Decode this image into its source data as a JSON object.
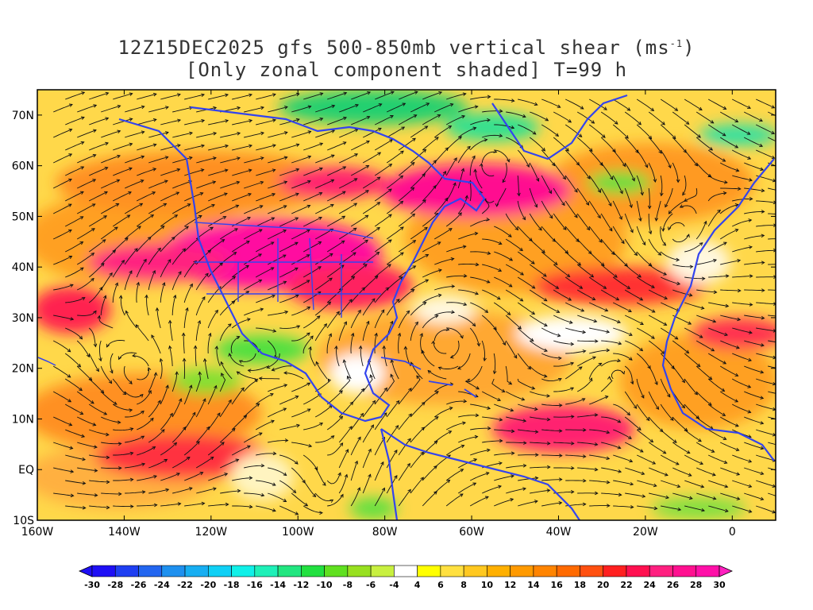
{
  "title": {
    "line1_prefix": "12Z15DEC2025 gfs 500-850mb vertical shear (ms",
    "line1_sup": "-1",
    "line1_suffix": ")",
    "line2": "[Only zonal component shaded] T=99 h"
  },
  "map": {
    "lon_range": [
      -160,
      10
    ],
    "lat_range": [
      -10,
      75
    ],
    "lon_ticks": [
      {
        "value": -160,
        "label": "160W"
      },
      {
        "value": -140,
        "label": "140W"
      },
      {
        "value": -120,
        "label": "120W"
      },
      {
        "value": -100,
        "label": "100W"
      },
      {
        "value": -80,
        "label": "80W"
      },
      {
        "value": -60,
        "label": "60W"
      },
      {
        "value": -40,
        "label": "40W"
      },
      {
        "value": -20,
        "label": "20W"
      },
      {
        "value": 0,
        "label": "0"
      }
    ],
    "lat_ticks": [
      {
        "value": 70,
        "label": "70N"
      },
      {
        "value": 60,
        "label": "60N"
      },
      {
        "value": 50,
        "label": "50N"
      },
      {
        "value": 40,
        "label": "40N"
      },
      {
        "value": 30,
        "label": "30N"
      },
      {
        "value": 20,
        "label": "20N"
      },
      {
        "value": 10,
        "label": "10N"
      },
      {
        "value": 0,
        "label": "EQ"
      },
      {
        "value": -10,
        "label": "10S"
      }
    ],
    "coastline_color": "#3344ee"
  },
  "colorbar": {
    "labels": [
      "-30",
      "-28",
      "-26",
      "-24",
      "-22",
      "-20",
      "-18",
      "-16",
      "-14",
      "-12",
      "-10",
      "-8",
      "-6",
      "-4",
      "4",
      "6",
      "8",
      "10",
      "12",
      "14",
      "16",
      "18",
      "20",
      "22",
      "24",
      "26",
      "28",
      "30"
    ],
    "colors": [
      "#1e0ff5",
      "#1f3ff2",
      "#2366f0",
      "#1e90ef",
      "#17aef2",
      "#10d0f5",
      "#10f0e8",
      "#1ef0b8",
      "#22e680",
      "#22e040",
      "#60e020",
      "#98e020",
      "#c8f040",
      "#ffffff",
      "#ffff00",
      "#ffe040",
      "#ffc820",
      "#ffb000",
      "#ff9a00",
      "#ff8400",
      "#ff6a00",
      "#ff5010",
      "#ff2020",
      "#ff1050",
      "#ff2080",
      "#ff1090",
      "#ff10a8"
    ],
    "under_color": "#1e0ff5",
    "over_color": "#ff20c0"
  }
}
